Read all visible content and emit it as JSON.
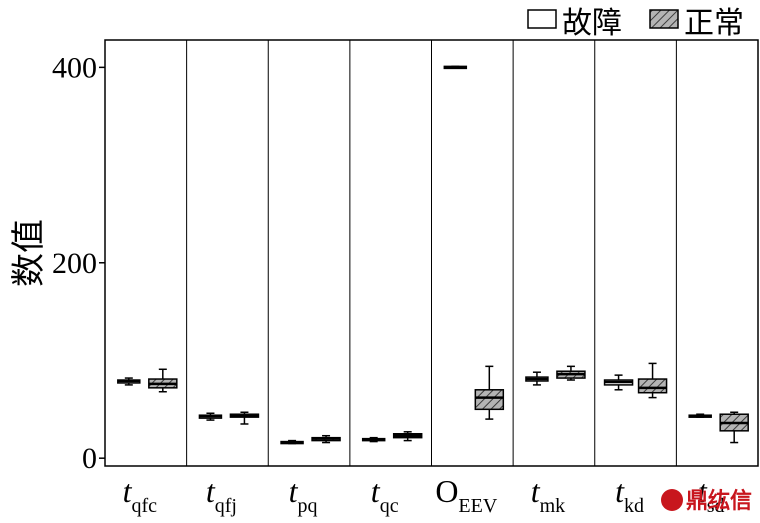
{
  "chart_data": {
    "type": "box",
    "ylabel": "数值",
    "xlabel": "",
    "ylim": [
      -8,
      428
    ],
    "yticks": [
      0,
      200,
      400
    ],
    "legend": {
      "placement": "top-right",
      "entries": [
        {
          "name": "故障",
          "fill": "#ffffff",
          "pattern": "none"
        },
        {
          "name": "正常",
          "fill": "#b0b0b0",
          "pattern": "hatch"
        }
      ]
    },
    "categories": [
      {
        "main": "t",
        "sub": "qfc",
        "italic": true
      },
      {
        "main": "t",
        "sub": "qfj",
        "italic": true
      },
      {
        "main": "t",
        "sub": "pq",
        "italic": true
      },
      {
        "main": "t",
        "sub": "qc",
        "italic": true
      },
      {
        "main": "O",
        "sub": "EEV",
        "italic": false
      },
      {
        "main": "t",
        "sub": "mk",
        "italic": true
      },
      {
        "main": "t",
        "sub": "kd",
        "italic": true
      },
      {
        "main": "t",
        "sub": "sd",
        "italic": true
      }
    ],
    "series": [
      {
        "name": "故障",
        "boxes": [
          {
            "min": 75,
            "q1": 77,
            "median": 79,
            "q3": 80,
            "max": 82
          },
          {
            "min": 39,
            "q1": 41,
            "median": 43,
            "q3": 44,
            "max": 46
          },
          {
            "min": 15,
            "q1": 16,
            "median": 16,
            "q3": 17,
            "max": 18
          },
          {
            "min": 17,
            "q1": 18,
            "median": 19,
            "q3": 20,
            "max": 21
          },
          {
            "min": 400,
            "q1": 400,
            "median": 400,
            "q3": 401,
            "max": 401
          },
          {
            "min": 75,
            "q1": 79,
            "median": 81,
            "q3": 83,
            "max": 88
          },
          {
            "min": 70,
            "q1": 75,
            "median": 78,
            "q3": 80,
            "max": 85
          },
          {
            "min": 42,
            "q1": 43,
            "median": 43,
            "q3": 44,
            "max": 45
          }
        ]
      },
      {
        "name": "正常",
        "boxes": [
          {
            "min": 68,
            "q1": 72,
            "median": 76,
            "q3": 81,
            "max": 91
          },
          {
            "min": 35,
            "q1": 42,
            "median": 43,
            "q3": 45,
            "max": 47
          },
          {
            "min": 16,
            "q1": 18,
            "median": 20,
            "q3": 21,
            "max": 23
          },
          {
            "min": 18,
            "q1": 21,
            "median": 23,
            "q3": 25,
            "max": 27
          },
          {
            "min": 40,
            "q1": 50,
            "median": 62,
            "q3": 70,
            "max": 94
          },
          {
            "min": 80,
            "q1": 82,
            "median": 86,
            "q3": 89,
            "max": 94
          },
          {
            "min": 62,
            "q1": 67,
            "median": 72,
            "q3": 81,
            "max": 97
          },
          {
            "min": 16,
            "q1": 28,
            "median": 36,
            "q3": 45,
            "max": 47
          }
        ]
      }
    ]
  },
  "watermark": {
    "text": "鼎纮信"
  }
}
